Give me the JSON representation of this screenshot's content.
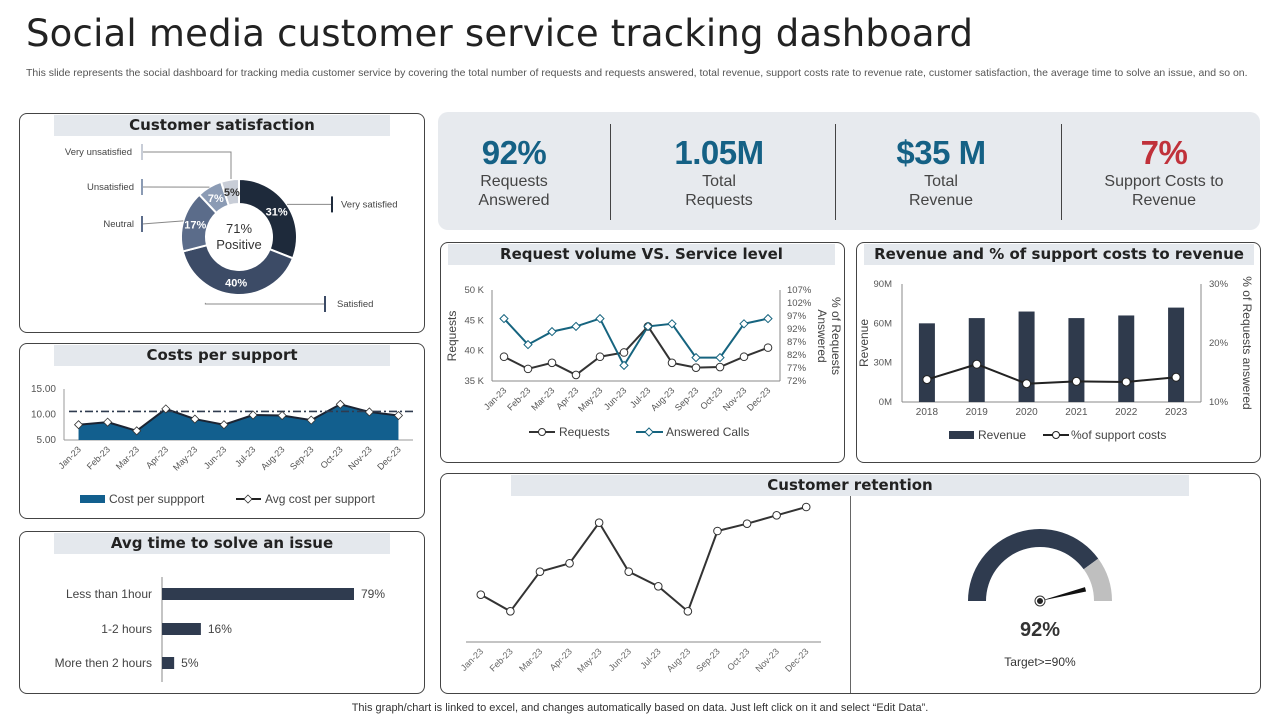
{
  "header": {
    "title": "Social media customer service tracking dashboard",
    "subtitle": "This slide represents the social dashboard for tracking media customer service by covering the total number of requests and requests answered, total revenue, support costs rate to revenue rate, customer satisfaction, the average time to solve an issue, and so on."
  },
  "footer": "This graph/chart is linked to excel,  and changes automatically based on data. Just left click on it and select “Edit Data”.",
  "kpis": [
    {
      "value": "92%",
      "label_line1": "Requests",
      "label_line2": "Answered",
      "color": "#156185"
    },
    {
      "value": "1.05M",
      "label_line1": "Total",
      "label_line2": "Requests",
      "color": "#156185"
    },
    {
      "value": "$35 M",
      "label_line1": "Total",
      "label_line2": "Revenue",
      "color": "#156185"
    },
    {
      "value": "7%",
      "label_line1": "Support Costs to",
      "label_line2": "Revenue",
      "color": "#c0313a"
    }
  ],
  "panels": {
    "satisfaction": "Customer satisfaction",
    "costs": "Costs per support",
    "avg_time": "Avg time to solve an issue",
    "request_volume": "Request volume VS. Service level",
    "revenue": "Revenue and % of support costs to revenue",
    "retention": "Customer retention"
  },
  "chart_data": [
    {
      "id": "satisfaction",
      "type": "pie",
      "title": "Customer satisfaction",
      "center_label_line1": "71%",
      "center_label_line2": "Positive",
      "slices": [
        {
          "label": "Very satisfied",
          "value": 31,
          "display": "31%",
          "color": "#1e2a3b"
        },
        {
          "label": "Satisfied",
          "value": 40,
          "display": "40%",
          "color": "#3c4b66"
        },
        {
          "label": "Neutral",
          "value": 17,
          "display": "17%",
          "color": "#5b6c8a"
        },
        {
          "label": "Unsatisfied",
          "value": 7,
          "display": "7%",
          "color": "#8b9bb4"
        },
        {
          "label": "Very unsatisfied",
          "value": 5,
          "display": "5%",
          "color": "#c8cdd7"
        }
      ]
    },
    {
      "id": "costs",
      "type": "area",
      "title": "Costs per support",
      "categories": [
        "Jan-23",
        "Feb-23",
        "Mar-23",
        "Apr-23",
        "May-23",
        "Jun-23",
        "Jul-23",
        "Aug-23",
        "Sep-23",
        "Oct-23",
        "Nov-23",
        "Dec-23"
      ],
      "series": [
        {
          "name": "Cost per suppport",
          "values": [
            8.0,
            8.5,
            6.8,
            11.1,
            9.1,
            8.0,
            9.9,
            9.8,
            8.9,
            12.0,
            10.5,
            9.8
          ],
          "color": "#125f8e"
        },
        {
          "name": "Avg cost per support",
          "values": [
            10.6,
            10.6,
            10.6,
            10.6,
            10.6,
            10.6,
            10.6,
            10.6,
            10.6,
            10.6,
            10.6,
            10.6
          ],
          "color": "#333333"
        }
      ],
      "yticks": [
        "15.00",
        "10.00",
        "5.00"
      ],
      "ylim": [
        5,
        15
      ]
    },
    {
      "id": "avg_time",
      "type": "bar",
      "orientation": "horizontal",
      "title": "Avg time to solve an issue",
      "categories": [
        "Less than 1hour",
        "1-2 hours",
        "More then 2 hours"
      ],
      "values": [
        79,
        16,
        5
      ],
      "labels": [
        "79%",
        "16%",
        "5%"
      ],
      "color": "#2f3b4f"
    },
    {
      "id": "request_volume",
      "type": "line",
      "title": "Request volume VS. Service level",
      "categories": [
        "Jan-23",
        "Feb-23",
        "Mar-23",
        "Apr-23",
        "May-23",
        "Jun-23",
        "Jul-23",
        "Aug-23",
        "Sep-23",
        "Oct-23",
        "Nov-23",
        "Dec-23"
      ],
      "series": [
        {
          "name": "Requests",
          "axis": "left",
          "values": [
            39.0,
            37.0,
            38.0,
            36.0,
            39.0,
            39.7,
            44.0,
            38.0,
            37.2,
            37.3,
            39.0,
            40.5
          ],
          "color": "#333333"
        },
        {
          "name": "Answered Calls",
          "axis": "right",
          "values": [
            96,
            86,
            91,
            93,
            96,
            78,
            93,
            94,
            81,
            81,
            94,
            96
          ],
          "color": "#16647f"
        }
      ],
      "ylabel": "Requests",
      "y2label": "% of Requests Answered",
      "yticks": [
        "50 K",
        "45 K",
        "40 K",
        "35 K"
      ],
      "ylim": [
        35,
        50
      ],
      "y2ticks": [
        "107%",
        "102%",
        "97%",
        "92%",
        "87%",
        "82%",
        "77%",
        "72%"
      ],
      "y2lim": [
        72,
        107
      ]
    },
    {
      "id": "revenue",
      "type": "bar",
      "title": "Revenue and % of support costs to revenue",
      "categories": [
        "2018",
        "2019",
        "2020",
        "2021",
        "2022",
        "2023"
      ],
      "series": [
        {
          "name": "Revenue",
          "axis": "left",
          "values": [
            60,
            64,
            69,
            64,
            66,
            72
          ],
          "color": "#2f3a4c"
        },
        {
          "name": "%of support costs",
          "axis": "right",
          "values": [
            13.8,
            16.4,
            13.1,
            13.5,
            13.4,
            14.2
          ],
          "color": "#222222"
        }
      ],
      "ylabel": "Revenue",
      "y2label": "% of Requests answered",
      "yticks": [
        "90M",
        "60M",
        "30M",
        "0M"
      ],
      "ylim": [
        0,
        90
      ],
      "y2ticks": [
        "30%",
        "20%",
        "10%"
      ],
      "y2lim": [
        10,
        30
      ]
    },
    {
      "id": "retention",
      "type": "line",
      "title": "Customer retention",
      "categories": [
        "Jan-23",
        "Feb-23",
        "Mar-23",
        "Apr-23",
        "May-23",
        "Jun-23",
        "Jul-23",
        "Aug-23",
        "Sep-23",
        "Oct-23",
        "Nov-23",
        "Dec-23"
      ],
      "values": [
        31,
        15,
        53,
        61,
        100,
        53,
        39,
        15,
        92,
        99,
        107,
        115
      ],
      "note": "no y-axis shown; relative index values",
      "color": "#333333"
    },
    {
      "id": "retention_gauge",
      "type": "gauge",
      "value": 92,
      "display": "92%",
      "target_label": "Target>=90%",
      "filled_fraction": 0.8,
      "colors": {
        "filled": "#2f3b4f",
        "rest": "#bfbfbf"
      }
    }
  ]
}
